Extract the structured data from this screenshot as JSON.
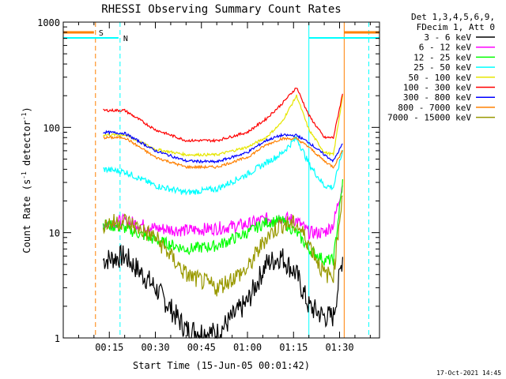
{
  "chart_data": {
    "type": "line",
    "title": "RHESSI Observing Summary Count Rates",
    "xlabel": "Start Time (15-Jun-05 00:01:42)",
    "ylabel": "Count Rate (s⁻¹ detector⁻¹)",
    "ylabel_base": "Count Rate (s",
    "ylabel_sup1": "-1",
    "ylabel_mid": " detector",
    "ylabel_sup2": "-1",
    "ylabel_end": ")",
    "yscale": "log",
    "ylim": [
      1,
      1000
    ],
    "xlim_minutes": [
      0,
      103
    ],
    "xticks": [
      {
        "m": 15,
        "label": "00:15"
      },
      {
        "m": 30,
        "label": "00:30"
      },
      {
        "m": 45,
        "label": "00:45"
      },
      {
        "m": 60,
        "label": "01:00"
      },
      {
        "m": 75,
        "label": "01:15"
      },
      {
        "m": 90,
        "label": "01:30"
      }
    ],
    "yticks": [
      {
        "v": 1,
        "label": "1"
      },
      {
        "v": 10,
        "label": "10"
      },
      {
        "v": 100,
        "label": "100"
      },
      {
        "v": 1000,
        "label": "1000"
      }
    ],
    "legend_header": [
      "Det 1,3,4,5,6,9,",
      "FDecim 1, Att 0"
    ],
    "legend_position": "right",
    "timestamp": "17-Oct-2021 14:45",
    "flags": [
      {
        "label": "S",
        "color": "#ff8000",
        "start": 0,
        "end": 10,
        "after_start": 91.5,
        "after_end": 103
      },
      {
        "label": "N",
        "color": "#00ffff",
        "start": 0,
        "end": 18,
        "after_start": 80,
        "after_end": 103
      }
    ],
    "markers": [
      {
        "m": 10.5,
        "color": "#ff8000",
        "style": "dashed"
      },
      {
        "m": 18.5,
        "color": "#00ffff",
        "style": "dashed"
      },
      {
        "m": 80,
        "color": "#00ffff",
        "style": "solid"
      },
      {
        "m": 91.5,
        "color": "#ff8000",
        "style": "solid"
      },
      {
        "m": 99.5,
        "color": "#00ffff",
        "style": "dashed"
      }
    ],
    "x_minutes": [
      13,
      20,
      30,
      40,
      50,
      60,
      66,
      71,
      76,
      80,
      85,
      88,
      91
    ],
    "series": [
      {
        "name": "3 - 6 keV",
        "color": "#000000",
        "values": [
          5.5,
          6,
          3,
          1.2,
          1.1,
          2.2,
          5,
          6,
          4,
          2,
          1.6,
          1.6,
          6
        ]
      },
      {
        "name": "6 - 12 keV",
        "color": "#ff00ff",
        "values": [
          12,
          13,
          11,
          10.5,
          11,
          12,
          13.5,
          14,
          13,
          10,
          10,
          12,
          30
        ]
      },
      {
        "name": "12 - 25 keV",
        "color": "#00ff00",
        "values": [
          12,
          11,
          8.5,
          7,
          7.5,
          10,
          12.5,
          13,
          10,
          7,
          5.5,
          5.5,
          30
        ]
      },
      {
        "name": "25 - 50 keV",
        "color": "#00ffff",
        "values": [
          40,
          38,
          28,
          24,
          26,
          36,
          46,
          56,
          80,
          45,
          28,
          27,
          60
        ]
      },
      {
        "name": "50 - 100 keV",
        "color": "#e6e600",
        "values": [
          85,
          85,
          62,
          55,
          55,
          65,
          80,
          110,
          200,
          95,
          58,
          55,
          200
        ]
      },
      {
        "name": "100 - 300 keV",
        "color": "#ff0000",
        "values": [
          145,
          145,
          95,
          75,
          75,
          90,
          120,
          165,
          240,
          130,
          80,
          80,
          210
        ]
      },
      {
        "name": "300 - 800 keV",
        "color": "#0000ff",
        "values": [
          90,
          88,
          60,
          48,
          47,
          58,
          75,
          84,
          84,
          72,
          55,
          48,
          70
        ]
      },
      {
        "name": "800 - 7000 keV",
        "color": "#ff8000",
        "values": [
          80,
          80,
          52,
          42,
          42,
          52,
          68,
          78,
          78,
          65,
          48,
          42,
          60
        ]
      },
      {
        "name": "7000 - 15000 keV",
        "color": "#999900",
        "values": [
          12,
          13,
          9,
          4,
          3,
          4.5,
          9,
          12,
          12,
          8,
          4,
          4,
          25
        ]
      }
    ]
  }
}
